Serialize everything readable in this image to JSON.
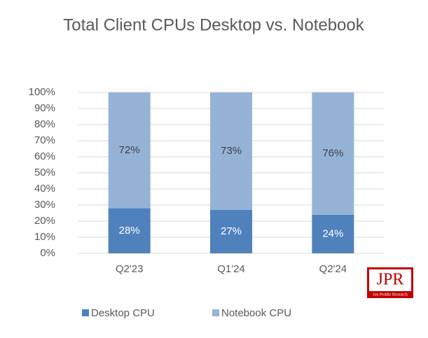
{
  "chart_data": {
    "type": "stacked_bar",
    "title": "Total Client CPUs Desktop vs. Notebook",
    "categories": [
      "Q2'23",
      "Q1'24",
      "Q2'24"
    ],
    "series": [
      {
        "name": "Desktop CPU",
        "color": "#4f81bd",
        "values": [
          28,
          27,
          24
        ],
        "value_labels": [
          "28%",
          "27%",
          "24%"
        ]
      },
      {
        "name": "Notebook CPU",
        "color": "#95b3d7",
        "values": [
          72,
          73,
          76
        ],
        "value_labels": [
          "72%",
          "73%",
          "76%"
        ]
      }
    ],
    "ylim": [
      0,
      100
    ],
    "yticks": [
      {
        "value": 0,
        "label": "0%"
      },
      {
        "value": 10,
        "label": "10%"
      },
      {
        "value": 20,
        "label": "20%"
      },
      {
        "value": 30,
        "label": "30%"
      },
      {
        "value": 40,
        "label": "40%"
      },
      {
        "value": 50,
        "label": "50%"
      },
      {
        "value": 60,
        "label": "60%"
      },
      {
        "value": 70,
        "label": "70%"
      },
      {
        "value": 80,
        "label": "80%"
      },
      {
        "value": 90,
        "label": "90%"
      },
      {
        "value": 100,
        "label": "100%"
      }
    ],
    "grid": true,
    "legend": "bottom"
  },
  "logo": {
    "title": "JPR",
    "subtitle": "Jon Peddie Research"
  }
}
